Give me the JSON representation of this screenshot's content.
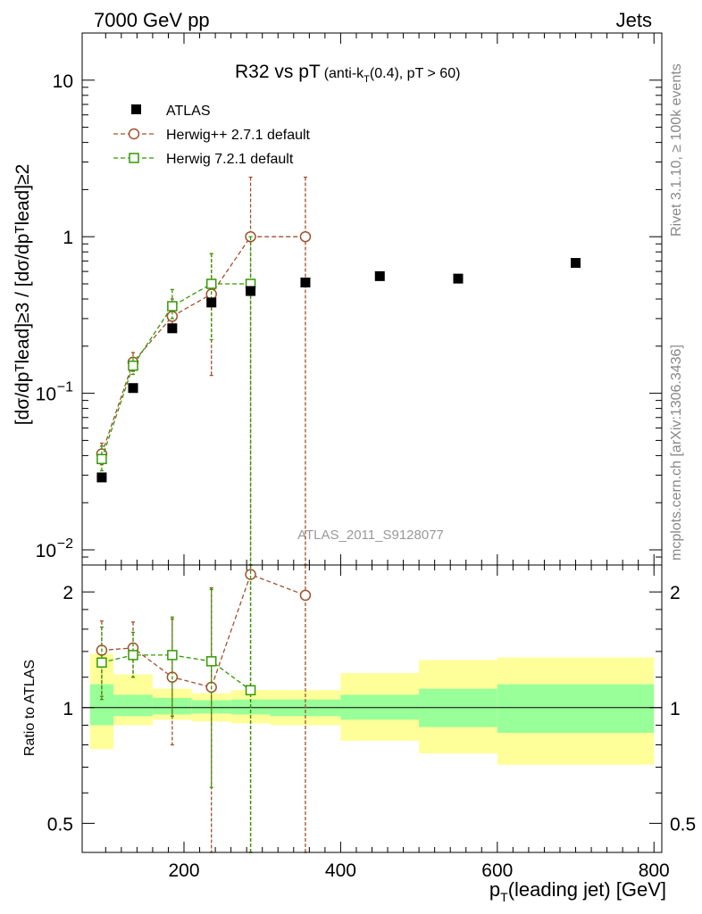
{
  "header": {
    "left": "7000 GeV pp",
    "right": "Jets",
    "title_main": "R32 vs pT",
    "title_sub_pre": "(anti-k",
    "title_sub_idx": "T",
    "title_sub_post": "(0.4), pT > 60)"
  },
  "side": {
    "rivet": "Rivet 3.1.10, ≥ 100k events",
    "mcplots": "mcplots.cern.ch [arXiv:1306.3436]"
  },
  "watermark": "ATLAS_2011_S9128077",
  "axes": {
    "ylabel_main": "[dσ/dpᵀlead]≥3 / [dσ/dpᵀlead]≥2",
    "ylabel_ratio": "Ratio to ATLAS",
    "xlabel_p": "p",
    "xlabel_idx": "T",
    "xlabel_rest": "(leading jet) [GeV]"
  },
  "chart_data": [
    {
      "type": "scatter",
      "panel": "main",
      "xlim": [
        70,
        810
      ],
      "ylim": [
        0.008,
        20
      ],
      "yscale": "log",
      "xticks": [
        200,
        400,
        600,
        800
      ],
      "yticks": [
        {
          "value": 0.01,
          "label": "10",
          "exp": "−2"
        },
        {
          "value": 0.1,
          "label": "10",
          "exp": "−1"
        },
        {
          "value": 1,
          "label": "1",
          "exp": ""
        },
        {
          "value": 10,
          "label": "10",
          "exp": ""
        }
      ],
      "legend_position": "top-left",
      "series": [
        {
          "name": "ATLAS",
          "color": "#000000",
          "marker": "filled-square",
          "points": [
            {
              "x": 95,
              "y": 0.029,
              "xlo": 80,
              "xhi": 110
            },
            {
              "x": 135,
              "y": 0.108,
              "xlo": 110,
              "xhi": 160
            },
            {
              "x": 185,
              "y": 0.26,
              "xlo": 160,
              "xhi": 210
            },
            {
              "x": 235,
              "y": 0.38,
              "xlo": 210,
              "xhi": 260
            },
            {
              "x": 285,
              "y": 0.45,
              "xlo": 260,
              "xhi": 310
            },
            {
              "x": 355,
              "y": 0.51,
              "xlo": 310,
              "xhi": 400
            },
            {
              "x": 450,
              "y": 0.56,
              "xlo": 400,
              "xhi": 500
            },
            {
              "x": 550,
              "y": 0.54,
              "xlo": 500,
              "xhi": 600
            },
            {
              "x": 700,
              "y": 0.68,
              "xlo": 600,
              "xhi": 800
            }
          ]
        },
        {
          "name": "Herwig++ 2.7.1 default",
          "color": "#a0522d",
          "marker": "open-circle",
          "dashed": true,
          "points": [
            {
              "x": 95,
              "y": 0.041,
              "lo": 0.035,
              "hi": 0.048
            },
            {
              "x": 135,
              "y": 0.158,
              "lo": 0.138,
              "hi": 0.182
            },
            {
              "x": 185,
              "y": 0.31,
              "lo": 0.245,
              "hi": 0.4
            },
            {
              "x": 235,
              "y": 0.43,
              "lo": 0.13,
              "hi": 0.78
            },
            {
              "x": 285,
              "y": 1.0,
              "lo": 0.003,
              "hi": 2.4
            },
            {
              "x": 355,
              "y": 1.0,
              "lo": 0.003,
              "hi": 2.4
            }
          ]
        },
        {
          "name": "Herwig 7.2.1 default",
          "color": "#339900",
          "marker": "open-square",
          "dashed": true,
          "points": [
            {
              "x": 95,
              "y": 0.038,
              "lo": 0.032,
              "hi": 0.046
            },
            {
              "x": 135,
              "y": 0.15,
              "lo": 0.132,
              "hi": 0.17
            },
            {
              "x": 185,
              "y": 0.36,
              "lo": 0.3,
              "hi": 0.46
            },
            {
              "x": 235,
              "y": 0.5,
              "lo": 0.22,
              "hi": 0.78
            },
            {
              "x": 285,
              "y": 0.5,
              "lo": 0.003,
              "hi": 1.0
            }
          ]
        }
      ]
    },
    {
      "type": "scatter",
      "panel": "ratio",
      "xlim": [
        70,
        810
      ],
      "ylim": [
        0.42,
        2.35
      ],
      "yscale": "log",
      "xticks": [
        200,
        400,
        600,
        800
      ],
      "yticks": [
        {
          "value": 0.5,
          "label": "0.5"
        },
        {
          "value": 1,
          "label": "1"
        },
        {
          "value": 2,
          "label": "2"
        }
      ],
      "bands": [
        {
          "xlo": 80,
          "xhi": 110,
          "stat_lo": 0.9,
          "stat_hi": 1.15,
          "tot_lo": 0.78,
          "tot_hi": 1.38
        },
        {
          "xlo": 110,
          "xhi": 160,
          "stat_lo": 0.95,
          "stat_hi": 1.08,
          "tot_lo": 0.9,
          "tot_hi": 1.22
        },
        {
          "xlo": 160,
          "xhi": 210,
          "stat_lo": 0.96,
          "stat_hi": 1.06,
          "tot_lo": 0.93,
          "tot_hi": 1.12
        },
        {
          "xlo": 210,
          "xhi": 260,
          "stat_lo": 0.965,
          "stat_hi": 1.045,
          "tot_lo": 0.92,
          "tot_hi": 1.09
        },
        {
          "xlo": 260,
          "xhi": 310,
          "stat_lo": 0.96,
          "stat_hi": 1.05,
          "tot_lo": 0.91,
          "tot_hi": 1.11
        },
        {
          "xlo": 310,
          "xhi": 400,
          "stat_lo": 0.95,
          "stat_hi": 1.05,
          "tot_lo": 0.9,
          "tot_hi": 1.11
        },
        {
          "xlo": 400,
          "xhi": 500,
          "stat_lo": 0.93,
          "stat_hi": 1.08,
          "tot_lo": 0.82,
          "tot_hi": 1.23
        },
        {
          "xlo": 500,
          "xhi": 600,
          "stat_lo": 0.89,
          "stat_hi": 1.12,
          "tot_lo": 0.76,
          "tot_hi": 1.33
        },
        {
          "xlo": 600,
          "xhi": 800,
          "stat_lo": 0.86,
          "stat_hi": 1.15,
          "tot_lo": 0.71,
          "tot_hi": 1.35
        }
      ],
      "series": [
        {
          "name": "Herwig++ 2.7.1 default",
          "color": "#a0522d",
          "points": [
            {
              "x": 95,
              "y": 1.41,
              "lo": 1.07,
              "hi": 1.68
            },
            {
              "x": 135,
              "y": 1.43,
              "lo": 1.2,
              "hi": 1.67
            },
            {
              "x": 185,
              "y": 1.2,
              "lo": 0.8,
              "hi": 1.7
            },
            {
              "x": 235,
              "y": 1.13,
              "lo": 0.35,
              "hi": 2.05
            },
            {
              "x": 285,
              "y": 2.22,
              "lo": 0.3,
              "hi": 2.35
            },
            {
              "x": 355,
              "y": 1.96,
              "lo": 0.3,
              "hi": 2.35
            }
          ]
        },
        {
          "name": "Herwig 7.2.1 default",
          "color": "#339900",
          "points": [
            {
              "x": 95,
              "y": 1.31,
              "lo": 1.05,
              "hi": 1.62
            },
            {
              "x": 135,
              "y": 1.37,
              "lo": 1.2,
              "hi": 1.57
            },
            {
              "x": 185,
              "y": 1.37,
              "lo": 0.95,
              "hi": 1.72
            },
            {
              "x": 235,
              "y": 1.32,
              "lo": 0.62,
              "hi": 2.03
            },
            {
              "x": 285,
              "y": 1.11,
              "lo": 0.3,
              "hi": 2.35
            }
          ]
        }
      ]
    }
  ]
}
